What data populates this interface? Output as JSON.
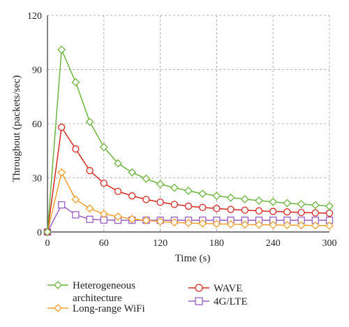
{
  "chart_data": {
    "type": "line",
    "title": "",
    "xlabel": "Time (s)",
    "ylabel": "Throughout (packets/sec)",
    "xlim": [
      0,
      300
    ],
    "ylim": [
      0,
      120
    ],
    "x_ticks": [
      "0",
      "60",
      "120",
      "180",
      "240",
      "300"
    ],
    "y_ticks": [
      "0",
      "30",
      "60",
      "90",
      "120"
    ],
    "grid": "dashed",
    "legend_position": "bottom",
    "x": [
      0,
      15,
      30,
      45,
      60,
      75,
      90,
      105,
      120,
      135,
      150,
      165,
      180,
      195,
      210,
      225,
      240,
      255,
      270,
      285,
      300
    ],
    "series": [
      {
        "name": "Heterogeneous architecture",
        "color": "#6cb43f",
        "marker": "diamond",
        "values": [
          0,
          101,
          83,
          61,
          47,
          38,
          33,
          29.5,
          26.5,
          24.5,
          22.8,
          21.2,
          20,
          19,
          18.2,
          17.4,
          16.7,
          16,
          15.4,
          14.9,
          14.3
        ]
      },
      {
        "name": "WAVE",
        "color": "#d42a20",
        "marker": "circle",
        "values": [
          0,
          58,
          46,
          34,
          27,
          22.5,
          20,
          18,
          16.5,
          15.3,
          14.3,
          13.6,
          13,
          12.5,
          12.1,
          11.7,
          11.4,
          11.1,
          10.8,
          10.6,
          10.4
        ]
      },
      {
        "name": "Long-range WiFi",
        "color": "#f0a030",
        "marker": "diamond",
        "values": [
          0,
          33,
          18,
          13,
          10,
          8.5,
          7.2,
          6.4,
          5.8,
          5.3,
          5,
          4.7,
          4.5,
          4.3,
          4.1,
          4,
          3.9,
          3.8,
          3.7,
          3.6,
          3.5
        ]
      },
      {
        "name": "4G/LTE",
        "color": "#9a5fc0",
        "marker": "square",
        "values": [
          0,
          15,
          9.5,
          7,
          6.6,
          6.5,
          6.5,
          6.5,
          6.5,
          6.5,
          6.5,
          6.5,
          6.5,
          6.5,
          6.5,
          6.5,
          6.5,
          6.5,
          6.5,
          6.5,
          6.5
        ]
      }
    ],
    "legend": {
      "heterogeneous_line1": "Heterogeneous",
      "heterogeneous_line2": "architecture",
      "wave": "WAVE",
      "longrange": "Long-range WiFi",
      "lte": "4G/LTE"
    }
  }
}
